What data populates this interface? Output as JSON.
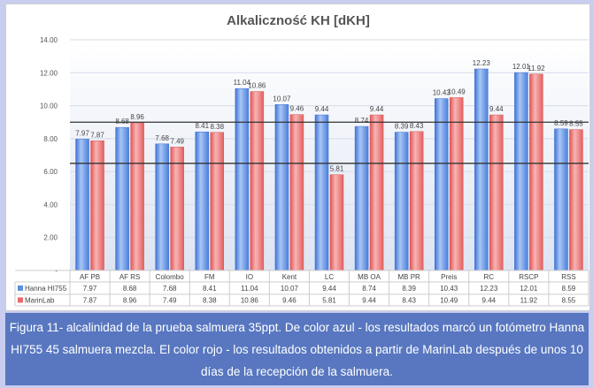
{
  "chart_data": {
    "type": "bar",
    "title": "Alkaliczność KH [dKH]",
    "categories": [
      "AF PB",
      "AF RS",
      "Colombo",
      "FM",
      "IO",
      "Kent",
      "LC",
      "MB OA",
      "MB PR",
      "Preis",
      "RC",
      "RSCP",
      "RSS"
    ],
    "series": [
      {
        "name": "Hanna HI755",
        "color": "#5b8fe0",
        "values": [
          7.97,
          8.68,
          7.68,
          8.41,
          11.04,
          10.07,
          9.44,
          8.74,
          8.39,
          10.43,
          12.23,
          12.01,
          8.59
        ]
      },
      {
        "name": "MarinLab",
        "color": "#e96a6a",
        "values": [
          7.87,
          8.96,
          7.49,
          8.38,
          10.86,
          9.46,
          5.81,
          9.44,
          8.43,
          10.49,
          9.44,
          11.92,
          8.55
        ]
      }
    ],
    "ylim": [
      0,
      14
    ],
    "yticks": [
      "-",
      "2.00",
      "4.00",
      "6.00",
      "8.00",
      "10.00",
      "12.00",
      "14.00"
    ],
    "reference_lines": [
      9.0,
      6.5
    ],
    "grid": true,
    "legend": "data-table"
  },
  "caption": "Figura 11- alcalinidad de la prueba salmuera 35ppt. De color azul - los resultados marcó un fotómetro Hanna HI755 45 salmuera mezcla. El color rojo - los resultados obtenidos a partir de MarinLab después de unos 10 días de la recepción de la salmuera."
}
